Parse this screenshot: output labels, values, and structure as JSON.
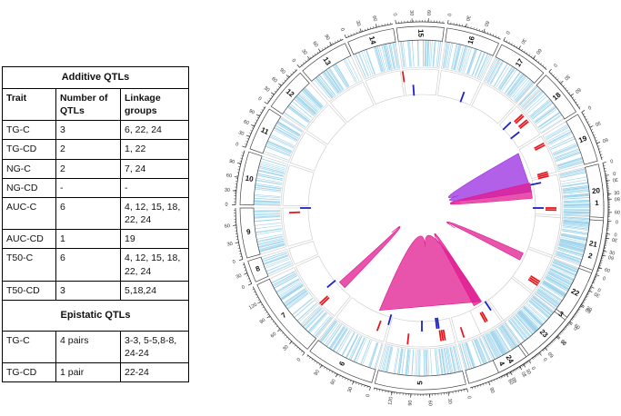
{
  "table": {
    "additive_title": "Additive QTLs",
    "headers": {
      "trait": "Trait",
      "number": "Number of QTLs",
      "groups": "Linkage groups"
    },
    "additive_rows": [
      {
        "trait": "TG-C",
        "number": "3",
        "groups": "6, 22, 24"
      },
      {
        "trait": "TG-CD",
        "number": "2",
        "groups": "1, 22"
      },
      {
        "trait": "NG-C",
        "number": "2",
        "groups": "7, 24"
      },
      {
        "trait": "NG-CD",
        "number": "-",
        "groups": "-"
      },
      {
        "trait": "AUC-C",
        "number": "6",
        "groups": "4, 12, 15, 18, 22, 24"
      },
      {
        "trait": "AUC-CD",
        "number": "1",
        "groups": "19"
      },
      {
        "trait": "T50-C",
        "number": "6",
        "groups": "4, 12, 15, 18, 22, 24"
      },
      {
        "trait": "T50-CD",
        "number": "3",
        "groups": "5,18,24"
      }
    ],
    "epistatic_title": "Epistatic QTLs",
    "epistatic_rows": [
      {
        "trait": "TG-C",
        "number": "4 pairs",
        "groups": "3-3, 5-5,8-8, 24-24"
      },
      {
        "trait": "TG-CD",
        "number": "1 pair",
        "groups": "22-24"
      }
    ]
  },
  "circos": {
    "chromosomes": [
      {
        "label": "1",
        "ticks": [
          "0",
          "30",
          "60"
        ]
      },
      {
        "label": "2",
        "ticks": [
          "0",
          "30",
          "60"
        ]
      },
      {
        "label": "3",
        "ticks": [
          "0",
          "30",
          "60",
          "90"
        ]
      },
      {
        "label": "4",
        "ticks": [
          "0",
          "30",
          "60",
          "90"
        ]
      },
      {
        "label": "5",
        "ticks": [
          "0",
          "30",
          "60",
          "90",
          "120"
        ]
      },
      {
        "label": "6",
        "ticks": [
          "0",
          "30",
          "60",
          "90"
        ]
      },
      {
        "label": "7",
        "ticks": [
          "0",
          "30",
          "60",
          "90",
          "120"
        ]
      },
      {
        "label": "8",
        "ticks": [
          "0",
          "30"
        ]
      },
      {
        "label": "9",
        "ticks": [
          "0",
          "30",
          "60"
        ]
      },
      {
        "label": "10",
        "ticks": [
          "0",
          "30",
          "60",
          "90"
        ]
      },
      {
        "label": "11",
        "ticks": [
          "0",
          "30",
          "60",
          "90"
        ]
      },
      {
        "label": "12",
        "ticks": [
          "0",
          "30",
          "60",
          "90"
        ]
      },
      {
        "label": "13",
        "ticks": [
          "0",
          "30",
          "60",
          "90"
        ]
      },
      {
        "label": "14",
        "ticks": [
          "0",
          "30",
          "60"
        ]
      },
      {
        "label": "15",
        "ticks": [
          "0",
          "30",
          "60"
        ]
      },
      {
        "label": "16",
        "ticks": [
          "0",
          "30",
          "60"
        ]
      },
      {
        "label": "17",
        "ticks": [
          "0",
          "30",
          "60"
        ]
      },
      {
        "label": "18",
        "ticks": [
          "0",
          "30",
          "60"
        ]
      },
      {
        "label": "19",
        "ticks": [
          "0",
          "30",
          "60"
        ]
      },
      {
        "label": "20",
        "ticks": [
          "0",
          "30",
          "60"
        ]
      },
      {
        "label": "21",
        "ticks": [
          "0",
          "30",
          "60"
        ]
      },
      {
        "label": "22",
        "ticks": [
          "0",
          "30",
          "60"
        ]
      },
      {
        "label": "23",
        "ticks": [
          "0",
          "30",
          "60"
        ]
      },
      {
        "label": "24",
        "ticks": [
          "0",
          "30",
          "60"
        ]
      }
    ],
    "colors": {
      "marker_line": "#9fd4ec",
      "qtl_red": "#e8171d",
      "qtl_blue": "#1b22c8",
      "link_magenta": "#e0198f",
      "link_purple": "#9a2be0",
      "ring": "#c9c9c9"
    }
  }
}
